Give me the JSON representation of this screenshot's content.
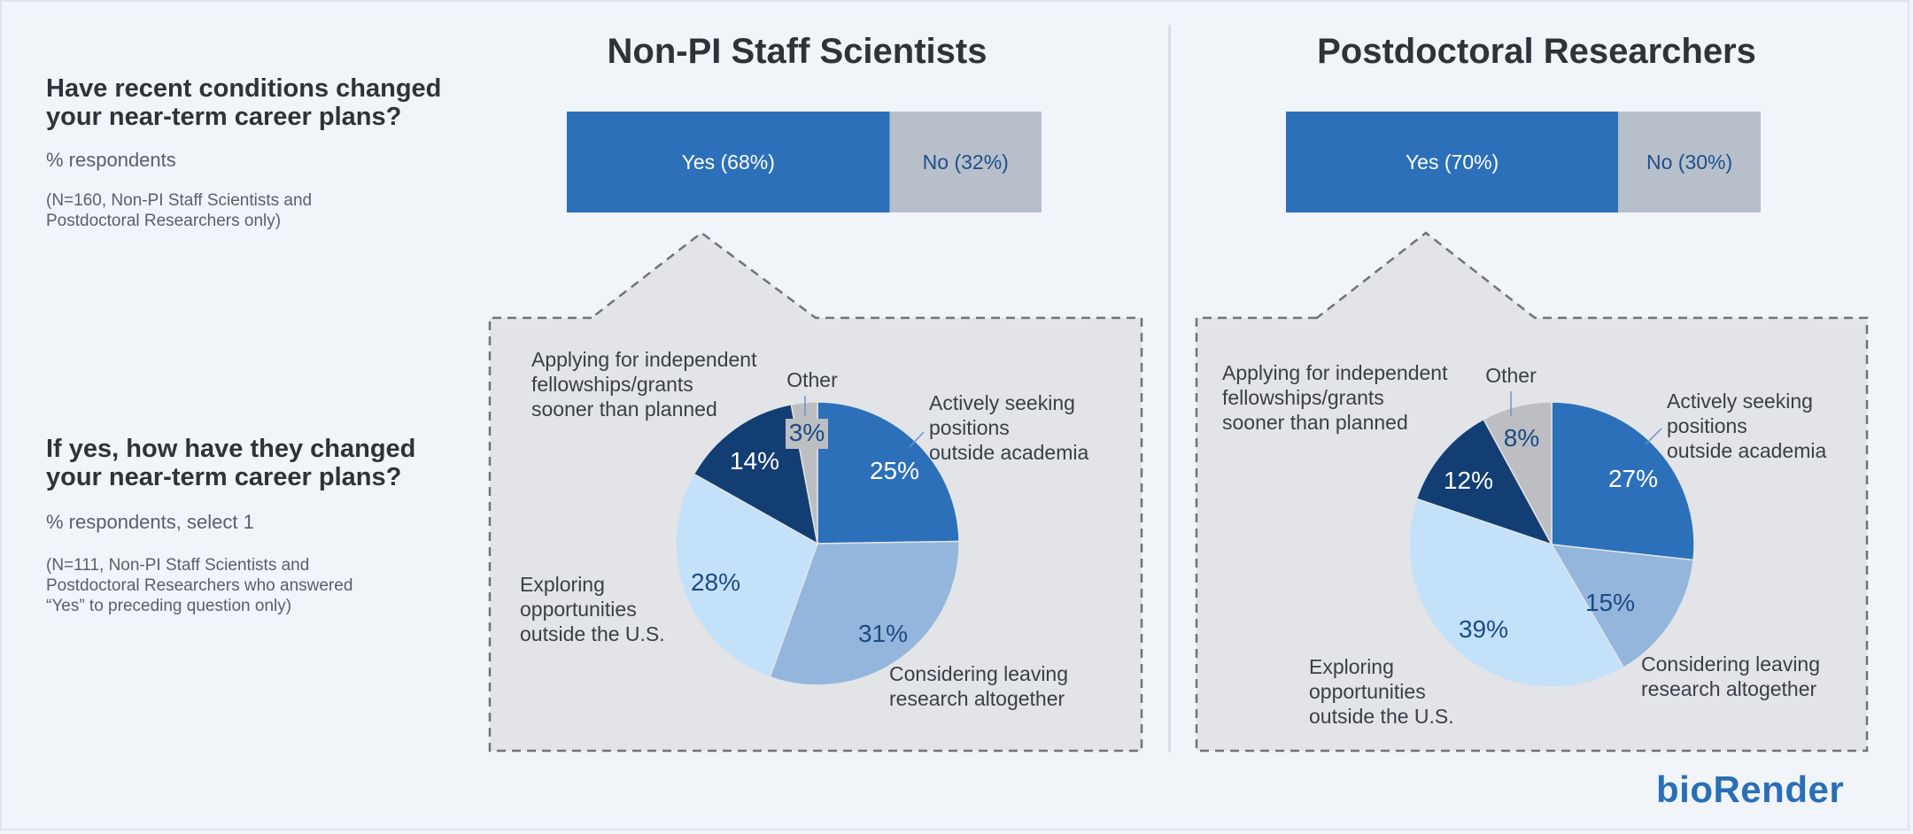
{
  "questions": {
    "q1": {
      "title_line1": "Have recent conditions changed",
      "title_line2": "your near-term career plans?",
      "subtitle": "% respondents",
      "note_line1": "(N=160, Non-PI Staff Scientists and",
      "note_line2": "Postdoctoral Researchers only)"
    },
    "q2": {
      "title_line1": "If yes, how have they changed",
      "title_line2": "your near-term career plans?",
      "subtitle": "% respondents, select 1",
      "note_line1": "(N=111, Non-PI Staff Scientists and",
      "note_line2": "Postdoctoral Researchers who answered",
      "note_line3": "“Yes” to preceding question only)"
    }
  },
  "logo": "bioRender",
  "colors": {
    "yes_bar": "#2c70ba",
    "no_bar": "#b7bfca",
    "seeking": "#2c70ba",
    "leaving": "#94b6dc",
    "exploring": "#c3e1f8",
    "applying": "#133e73",
    "other": "#bcbec2",
    "panel_bg": "#e2e4e8"
  },
  "chart_data": [
    {
      "type": "bar",
      "panel": "Non-PI Staff Scientists",
      "title": "Non-PI Staff Scientists",
      "stacked": true,
      "orientation": "horizontal",
      "categories": [
        "Yes",
        "No"
      ],
      "values": [
        68,
        32
      ],
      "labels": [
        "Yes (68%)",
        "No (32%)"
      ]
    },
    {
      "type": "pie",
      "panel": "Non-PI Staff Scientists",
      "slices": [
        {
          "key": "seeking",
          "label_lines": [
            "Actively seeking",
            "positions",
            "outside academia"
          ],
          "value": 25,
          "value_label": "25%"
        },
        {
          "key": "leaving",
          "label_lines": [
            "Considering leaving",
            "research altogether"
          ],
          "value": 31,
          "value_label": "31%"
        },
        {
          "key": "exploring",
          "label_lines": [
            "Exploring",
            "opportunities",
            "outside the U.S."
          ],
          "value": 28,
          "value_label": "28%"
        },
        {
          "key": "applying",
          "label_lines": [
            "Applying for independent",
            "fellowships/grants",
            "sooner than planned"
          ],
          "value": 14,
          "value_label": "14%"
        },
        {
          "key": "other",
          "label_lines": [
            "Other"
          ],
          "value": 3,
          "value_label": "3%"
        }
      ]
    },
    {
      "type": "bar",
      "panel": "Postdoctoral Researchers",
      "title": "Postdoctoral Researchers",
      "stacked": true,
      "orientation": "horizontal",
      "categories": [
        "Yes",
        "No"
      ],
      "values": [
        70,
        30
      ],
      "labels": [
        "Yes (70%)",
        "No (30%)"
      ]
    },
    {
      "type": "pie",
      "panel": "Postdoctoral Researchers",
      "slices": [
        {
          "key": "seeking",
          "label_lines": [
            "Actively seeking",
            "positions",
            "outside academia"
          ],
          "value": 27,
          "value_label": "27%"
        },
        {
          "key": "leaving",
          "label_lines": [
            "Considering leaving",
            "research altogether"
          ],
          "value": 15,
          "value_label": "15%"
        },
        {
          "key": "exploring",
          "label_lines": [
            "Exploring",
            "opportunities",
            "outside the U.S."
          ],
          "value": 39,
          "value_label": "39%"
        },
        {
          "key": "applying",
          "label_lines": [
            "Applying for independent",
            "fellowships/grants",
            "sooner than planned"
          ],
          "value": 12,
          "value_label": "12%"
        },
        {
          "key": "other",
          "label_lines": [
            "Other"
          ],
          "value": 8,
          "value_label": "8%"
        }
      ]
    }
  ]
}
